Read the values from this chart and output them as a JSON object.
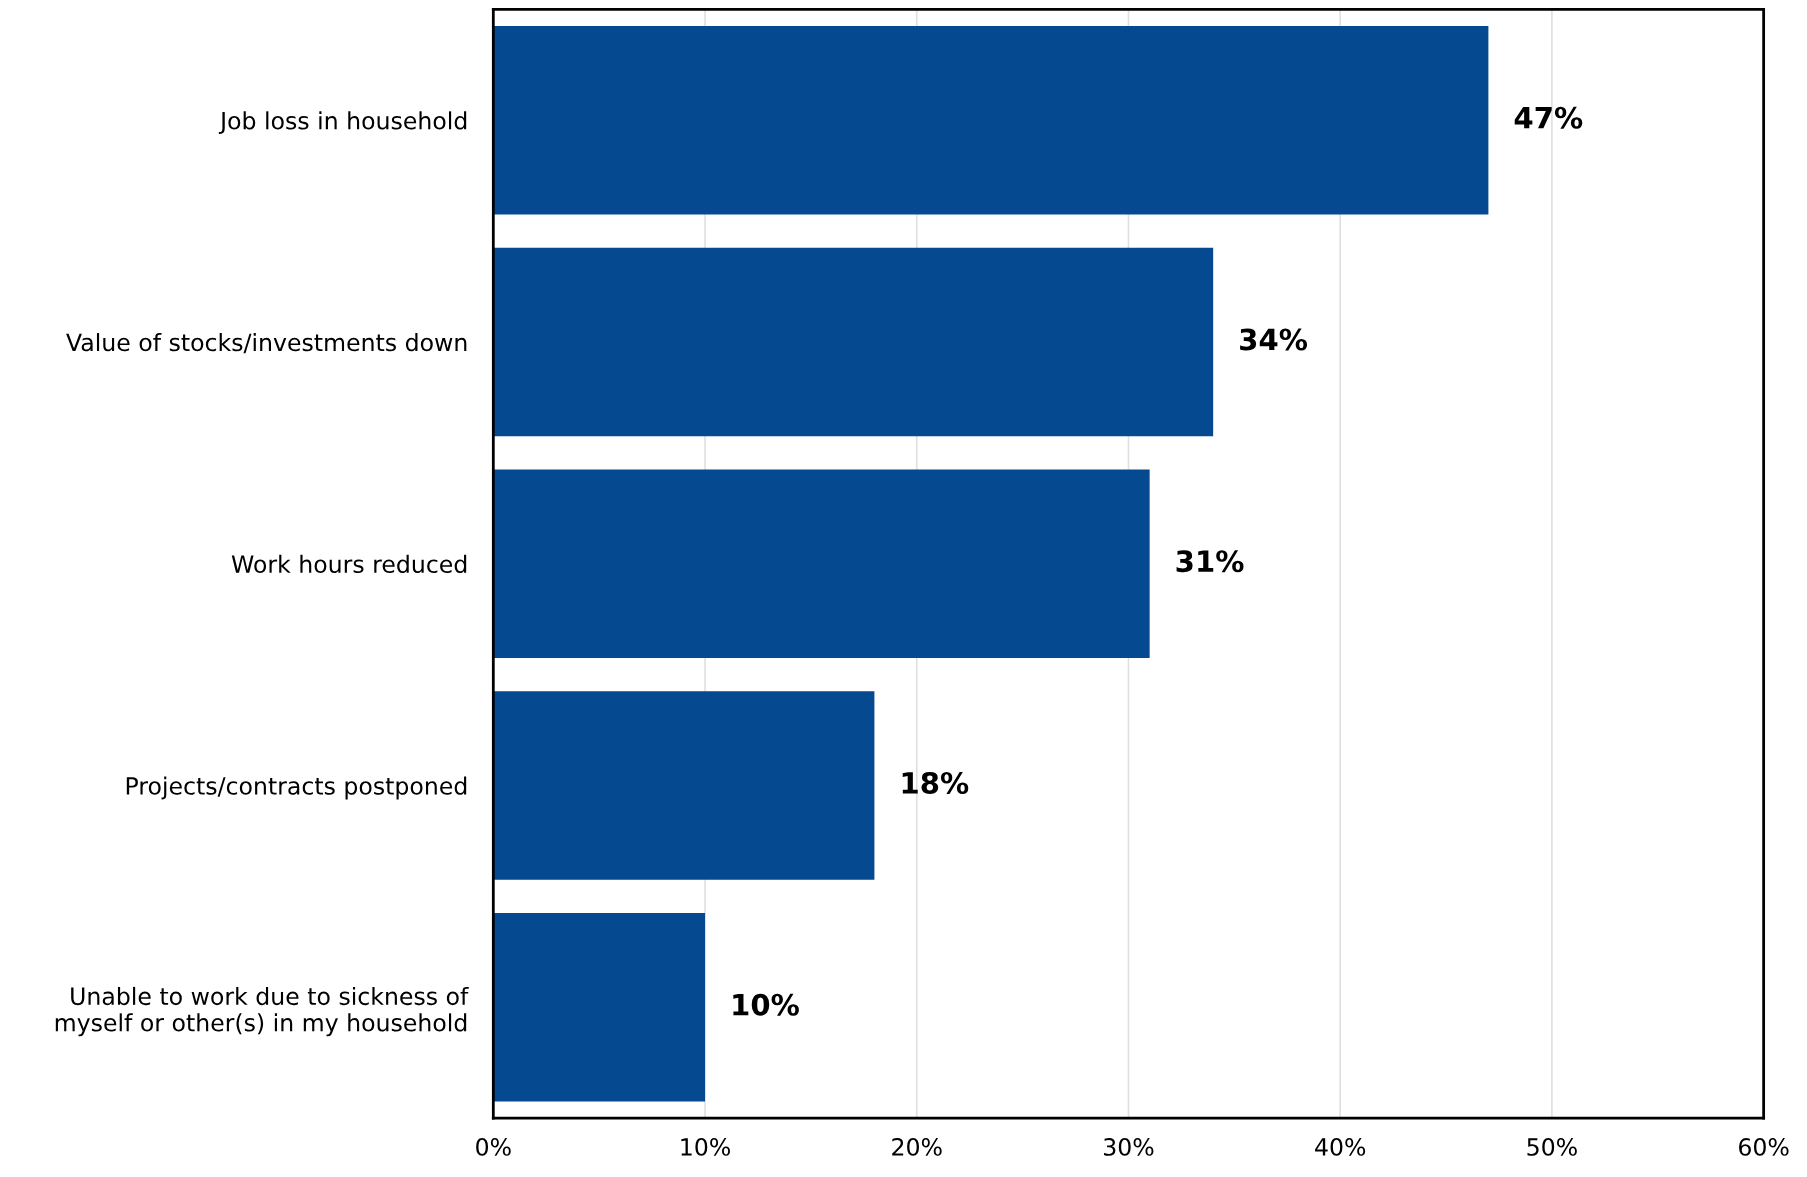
{
  "chart_data": {
    "type": "bar",
    "orientation": "horizontal",
    "categories": [
      "Job loss in household",
      "Value of stocks/investments down",
      "Work hours reduced",
      "Projects/contracts postponed",
      "Unable to work due to sickness of\nmyself or other(s) in my household"
    ],
    "values": [
      47,
      34,
      31,
      18,
      10
    ],
    "color": "#054a91",
    "value_labels": [
      "47%",
      "34%",
      "31%",
      "18%",
      "10%"
    ],
    "xlim": [
      0,
      60
    ],
    "xticks": [
      {
        "value": 0,
        "label": "0%"
      },
      {
        "value": 10,
        "label": "10%"
      },
      {
        "value": 20,
        "label": "20%"
      },
      {
        "value": 30,
        "label": "30%"
      },
      {
        "value": 40,
        "label": "40%"
      },
      {
        "value": 50,
        "label": "50%"
      },
      {
        "value": 60,
        "label": "60%"
      }
    ],
    "grid": "x",
    "legend": false
  }
}
